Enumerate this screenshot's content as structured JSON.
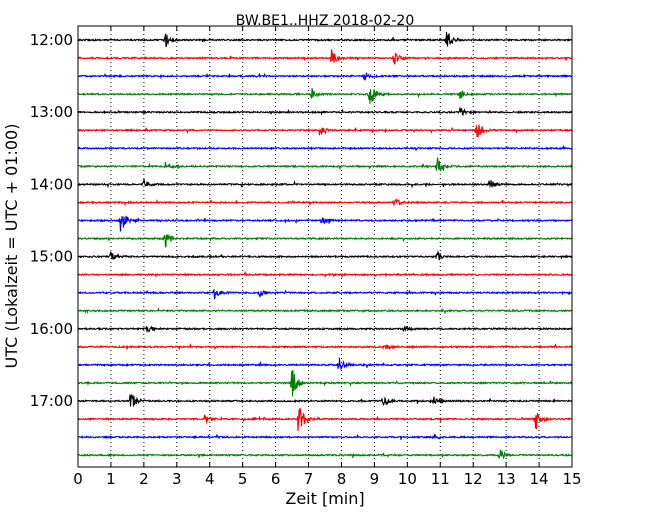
{
  "chart_data": {
    "type": "line",
    "title": "BW.BE1..HHZ 2018-02-20",
    "xlabel": "Zeit  [min]",
    "ylabel": "UTC (Lokalzeit = UTC + 01:00)",
    "xlim": [
      0,
      15
    ],
    "x_ticks": [
      "0",
      "1",
      "2",
      "3",
      "4",
      "5",
      "6",
      "7",
      "8",
      "9",
      "10",
      "11",
      "12",
      "13",
      "14",
      "15"
    ],
    "y_ticks": [
      "12:00",
      "13:00",
      "14:00",
      "15:00",
      "16:00",
      "17:00"
    ],
    "grid": "vertical dotted",
    "row_interval_minutes": 15,
    "color_cycle": [
      "#000000",
      "#ff0000",
      "#0000ff",
      "#008000"
    ],
    "rows": [
      {
        "start": "12:00",
        "events": [
          {
            "t": 2.65,
            "amp": 0.45
          },
          {
            "t": 11.2,
            "amp": 0.6
          }
        ]
      },
      {
        "start": "12:15",
        "events": [
          {
            "t": 7.7,
            "amp": 0.5
          },
          {
            "t": 9.6,
            "amp": 0.4
          }
        ]
      },
      {
        "start": "12:30",
        "events": [
          {
            "t": 8.7,
            "amp": 0.35
          }
        ]
      },
      {
        "start": "12:45",
        "events": [
          {
            "t": 7.1,
            "amp": 0.3
          },
          {
            "t": 8.85,
            "amp": 0.9
          },
          {
            "t": 11.6,
            "amp": 0.25
          }
        ]
      },
      {
        "start": "13:00",
        "events": [
          {
            "t": 11.6,
            "amp": 0.3
          }
        ]
      },
      {
        "start": "13:15",
        "events": [
          {
            "t": 7.3,
            "amp": 0.35
          },
          {
            "t": 12.1,
            "amp": 0.6
          }
        ]
      },
      {
        "start": "13:30",
        "events": []
      },
      {
        "start": "13:45",
        "events": [
          {
            "t": 2.65,
            "amp": 0.3
          },
          {
            "t": 10.9,
            "amp": 0.55
          }
        ]
      },
      {
        "start": "14:00",
        "events": [
          {
            "t": 2.0,
            "amp": 0.3
          },
          {
            "t": 12.5,
            "amp": 0.3
          }
        ]
      },
      {
        "start": "14:15",
        "events": [
          {
            "t": 9.6,
            "amp": 0.35
          }
        ]
      },
      {
        "start": "14:30",
        "events": [
          {
            "t": 1.3,
            "amp": 0.9
          },
          {
            "t": 7.4,
            "amp": 0.25
          }
        ]
      },
      {
        "start": "14:45",
        "events": [
          {
            "t": 2.65,
            "amp": 0.6
          }
        ]
      },
      {
        "start": "15:00",
        "events": [
          {
            "t": 1.0,
            "amp": 0.25
          },
          {
            "t": 10.9,
            "amp": 0.35
          }
        ]
      },
      {
        "start": "15:15",
        "events": []
      },
      {
        "start": "15:30",
        "events": [
          {
            "t": 4.15,
            "amp": 0.4
          },
          {
            "t": 5.5,
            "amp": 0.25
          }
        ]
      },
      {
        "start": "15:45",
        "events": []
      },
      {
        "start": "16:00",
        "events": [
          {
            "t": 2.1,
            "amp": 0.3
          },
          {
            "t": 9.9,
            "amp": 0.2
          }
        ]
      },
      {
        "start": "16:15",
        "events": [
          {
            "t": 9.3,
            "amp": 0.25
          }
        ]
      },
      {
        "start": "16:30",
        "events": [
          {
            "t": 7.9,
            "amp": 0.55
          }
        ]
      },
      {
        "start": "16:45",
        "events": [
          {
            "t": 6.5,
            "amp": 1.1
          }
        ]
      },
      {
        "start": "17:00",
        "events": [
          {
            "t": 1.6,
            "amp": 0.6
          },
          {
            "t": 9.25,
            "amp": 0.4
          },
          {
            "t": 10.8,
            "amp": 0.25
          }
        ]
      },
      {
        "start": "17:15",
        "events": [
          {
            "t": 6.7,
            "amp": 1.1
          },
          {
            "t": 13.9,
            "amp": 0.7
          },
          {
            "t": 3.85,
            "amp": 0.25
          }
        ]
      },
      {
        "start": "17:30",
        "events": [
          {
            "t": 10.8,
            "amp": 0.2
          }
        ]
      },
      {
        "start": "17:45",
        "events": [
          {
            "t": 12.8,
            "amp": 0.45
          }
        ]
      }
    ]
  }
}
